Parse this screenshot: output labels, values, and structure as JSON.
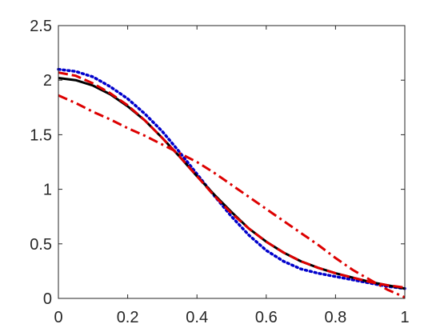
{
  "chart_data": {
    "type": "line",
    "title": "",
    "xlabel": "",
    "ylabel": "",
    "xlim": [
      0,
      1
    ],
    "ylim": [
      0,
      2.5
    ],
    "xticks": [
      "0",
      "0.2",
      "0.4",
      "0.6",
      "0.8",
      "1"
    ],
    "yticks": [
      "0",
      "0.5",
      "1",
      "1.5",
      "2",
      "2.5"
    ],
    "grid": false,
    "legend": "none",
    "series": [
      {
        "color": "#0000cc",
        "style": "dotted",
        "x": [
          0,
          0.05,
          0.1,
          0.15,
          0.2,
          0.25,
          0.3,
          0.35,
          0.4,
          0.45,
          0.5,
          0.55,
          0.6,
          0.65,
          0.7,
          0.75,
          0.8,
          0.85,
          0.9,
          0.95,
          1.0
        ],
        "y": [
          2.1,
          2.08,
          2.03,
          1.94,
          1.83,
          1.69,
          1.53,
          1.34,
          1.14,
          0.94,
          0.75,
          0.58,
          0.44,
          0.34,
          0.27,
          0.23,
          0.2,
          0.17,
          0.14,
          0.11,
          0.09
        ]
      },
      {
        "color": "#000000",
        "style": "solid",
        "x": [
          0,
          0.05,
          0.1,
          0.15,
          0.2,
          0.25,
          0.3,
          0.35,
          0.4,
          0.45,
          0.5,
          0.55,
          0.6,
          0.65,
          0.7,
          0.75,
          0.8,
          0.85,
          0.9,
          0.95,
          1.0
        ],
        "y": [
          2.02,
          2.0,
          1.95,
          1.87,
          1.76,
          1.63,
          1.47,
          1.3,
          1.12,
          0.95,
          0.79,
          0.64,
          0.52,
          0.42,
          0.34,
          0.28,
          0.23,
          0.19,
          0.15,
          0.12,
          0.09
        ]
      },
      {
        "color": "#dd0000",
        "style": "dashed",
        "x": [
          0,
          0.05,
          0.1,
          0.15,
          0.2,
          0.25,
          0.3,
          0.35,
          0.4,
          0.45,
          0.5,
          0.55,
          0.6,
          0.65,
          0.7,
          0.75,
          0.8,
          0.85,
          0.9,
          0.95,
          1.0
        ],
        "y": [
          2.07,
          2.04,
          1.97,
          1.88,
          1.77,
          1.63,
          1.47,
          1.3,
          1.12,
          0.94,
          0.78,
          0.64,
          0.52,
          0.42,
          0.34,
          0.28,
          0.23,
          0.19,
          0.15,
          0.12,
          0.1
        ]
      },
      {
        "color": "#dd0000",
        "style": "dashdot",
        "x": [
          0,
          0.05,
          0.1,
          0.15,
          0.2,
          0.25,
          0.3,
          0.35,
          0.4,
          0.45,
          0.5,
          0.55,
          0.6,
          0.65,
          0.7,
          0.75,
          0.8,
          0.85,
          0.9,
          0.95,
          1.0
        ],
        "y": [
          1.86,
          1.79,
          1.71,
          1.64,
          1.56,
          1.49,
          1.41,
          1.33,
          1.25,
          1.15,
          1.04,
          0.93,
          0.82,
          0.71,
          0.6,
          0.49,
          0.37,
          0.26,
          0.17,
          0.08,
          0.01
        ]
      }
    ]
  }
}
